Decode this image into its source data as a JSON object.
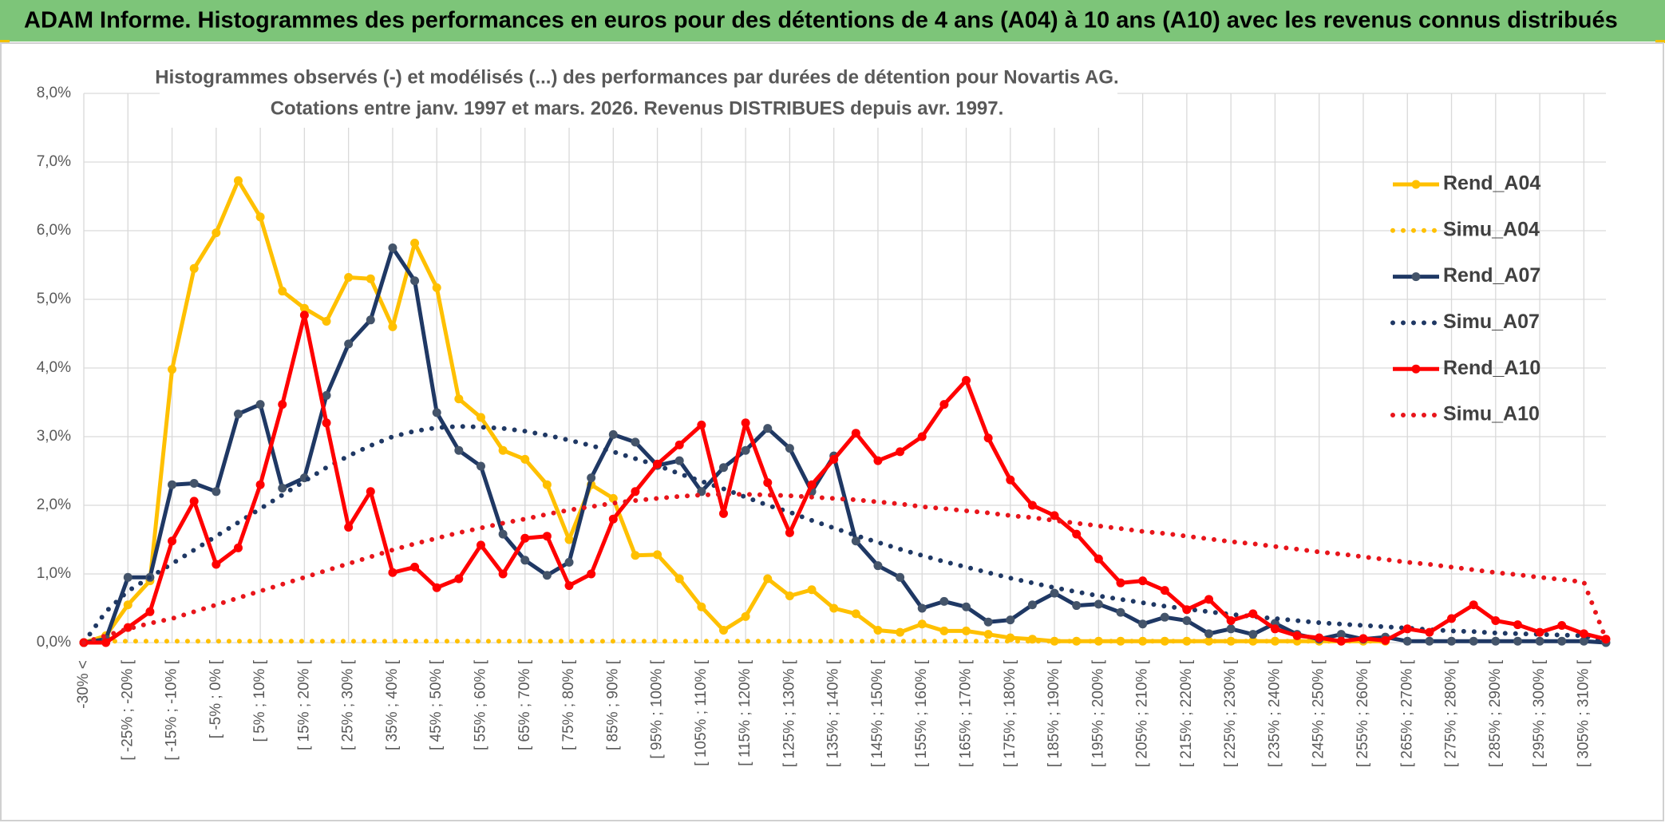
{
  "header": {
    "title": "ADAM Informe. Histogrammes des performances en euros pour des détentions de 4 ans (A04) à 10 ans (A10) avec les revenus connus distribués"
  },
  "chart_data": {
    "type": "line",
    "title": "Histogrammes observés (-) et modélisés (...) des performances par durées de détention pour Novartis AG.",
    "subtitle": "Cotations entre janv. 1997 et mars. 2026. Revenus DISTRIBUES depuis avr. 1997.",
    "categories": [
      "-30% <",
      null,
      "[ -25% ; -20% [",
      null,
      "[ -15% ; -10% [",
      null,
      "[ -5% ; 0% [",
      null,
      "[ 5% ; 10% [",
      null,
      "[ 15% ; 20% [",
      null,
      "[ 25% ; 30% [",
      null,
      "[ 35% ; 40% [",
      null,
      "[ 45% ; 50% [",
      null,
      "[ 55% ; 60% [",
      null,
      "[ 65% ; 70% [",
      null,
      "[ 75% ; 80% [",
      null,
      "[ 85% ; 90% [",
      null,
      "[ 95% ; 100% [",
      null,
      "[ 105% ; 110% [",
      null,
      "[ 115% ; 120% [",
      null,
      "[ 125% ; 130% [",
      null,
      "[ 135% ; 140% [",
      null,
      "[ 145% ; 150% [",
      null,
      "[ 155% ; 160% [",
      null,
      "[ 165% ; 170% [",
      null,
      "[ 175% ; 180% [",
      null,
      "[ 185% ; 190% [",
      null,
      "[ 195% ; 200% [",
      null,
      "[ 205% ; 210% [",
      null,
      "[ 215% ; 220% [",
      null,
      "[ 225% ; 230% [",
      null,
      "[ 235% ; 240% [",
      null,
      "[ 245% ; 250% [",
      null,
      "[ 255% ; 260% [",
      null,
      "[ 265% ; 270% [",
      null,
      "[ 275% ; 280% [",
      null,
      "[ 285% ; 290% [",
      null,
      "[ 295% ; 300% [",
      null,
      "[ 305% ; 310% [",
      null
    ],
    "series": [
      {
        "name": "Rend_A04",
        "color": "#ffc000",
        "style": "solid",
        "values": [
          0,
          0.1,
          0.55,
          0.9,
          3.98,
          5.45,
          5.97,
          6.73,
          6.2,
          5.12,
          4.87,
          4.68,
          5.32,
          5.3,
          4.6,
          5.82,
          5.17,
          3.55,
          3.28,
          2.8,
          2.67,
          2.3,
          1.5,
          2.3,
          2.1,
          1.27,
          1.28,
          0.93,
          0.52,
          0.18,
          0.38,
          0.93,
          0.68,
          0.77,
          0.5,
          0.42,
          0.18,
          0.15,
          0.27,
          0.17,
          0.17,
          0.12,
          0.07,
          0.05,
          0.02,
          0.02,
          0.02,
          0.02,
          0.02,
          0.02,
          0.02,
          0.02,
          0.02,
          0.02,
          0.02,
          0.02,
          0.02,
          0.02,
          0.02,
          0.02,
          null,
          null,
          null,
          null,
          null,
          null,
          null,
          null,
          null,
          null
        ]
      },
      {
        "name": "Simu_A04",
        "color": "#ffc000",
        "style": "dotted",
        "values": [
          0,
          0.02,
          0.02,
          0.02,
          0.02,
          0.02,
          0.02,
          0.02,
          0.02,
          0.02,
          0.02,
          0.02,
          0.02,
          0.02,
          0.02,
          0.02,
          0.02,
          0.02,
          0.02,
          0.02,
          0.02,
          0.02,
          0.02,
          0.02,
          0.02,
          0.02,
          0.02,
          0.02,
          0.02,
          0.02,
          0.02,
          0.02,
          0.02,
          0.02,
          0.02,
          0.02,
          0.02,
          0.02,
          0.02,
          0.02,
          0.02,
          0.02,
          0.02,
          0.02,
          0.02,
          0.02,
          0.02,
          0.02,
          0.02,
          0.02,
          0.02,
          0.02,
          0.02,
          0.02,
          0.02,
          0.02,
          0.02,
          0.02,
          0.02,
          0.02,
          null,
          null,
          null,
          null,
          null,
          null,
          null,
          null,
          null,
          null
        ]
      },
      {
        "name": "Rend_A07",
        "color": "#1f3864",
        "style": "solid",
        "values": [
          0,
          0.05,
          0.95,
          0.95,
          2.3,
          2.32,
          2.2,
          3.33,
          3.47,
          2.25,
          2.4,
          3.6,
          4.35,
          4.7,
          5.75,
          5.27,
          3.35,
          2.8,
          2.57,
          1.58,
          1.2,
          0.98,
          1.17,
          2.4,
          3.03,
          2.92,
          2.58,
          2.65,
          2.2,
          2.55,
          2.8,
          3.12,
          2.83,
          2.2,
          2.72,
          1.48,
          1.12,
          0.95,
          0.5,
          0.6,
          0.52,
          0.3,
          0.33,
          0.55,
          0.72,
          0.54,
          0.56,
          0.44,
          0.27,
          0.37,
          0.32,
          0.13,
          0.2,
          0.12,
          0.28,
          0.12,
          0.05,
          0.12,
          0.05,
          0.08,
          0.02,
          0.02,
          0.02,
          0.02,
          0.02,
          0.02,
          0.02,
          0.02,
          0.02,
          0
        ]
      },
      {
        "name": "Simu_A07",
        "color": "#1f3864",
        "style": "dotted",
        "values": [
          0,
          0.45,
          0.75,
          0.95,
          1.15,
          1.35,
          1.55,
          1.75,
          1.95,
          2.15,
          2.35,
          2.55,
          2.72,
          2.87,
          3.0,
          3.08,
          3.13,
          3.15,
          3.14,
          3.12,
          3.08,
          3.02,
          2.95,
          2.87,
          2.78,
          2.68,
          2.58,
          2.46,
          2.35,
          2.24,
          2.12,
          2.0,
          1.9,
          1.78,
          1.67,
          1.56,
          1.46,
          1.36,
          1.27,
          1.18,
          1.1,
          1.02,
          0.94,
          0.87,
          0.8,
          0.74,
          0.68,
          0.63,
          0.58,
          0.53,
          0.49,
          0.45,
          0.41,
          0.38,
          0.35,
          0.32,
          0.29,
          0.27,
          0.25,
          0.23,
          0.21,
          0.19,
          0.17,
          0.16,
          0.14,
          0.13,
          0.12,
          0.11,
          0.1,
          0
        ]
      },
      {
        "name": "Rend_A10",
        "color": "#ff0000",
        "style": "solid",
        "values": [
          0,
          0,
          0.22,
          0.45,
          1.48,
          2.06,
          1.14,
          1.38,
          2.3,
          3.47,
          4.77,
          3.2,
          1.68,
          2.2,
          1.02,
          1.1,
          0.8,
          0.93,
          1.42,
          1.0,
          1.52,
          1.55,
          0.83,
          1.0,
          1.8,
          2.2,
          2.6,
          2.88,
          3.17,
          1.88,
          3.2,
          2.33,
          1.6,
          2.3,
          2.67,
          3.05,
          2.65,
          2.78,
          3.0,
          3.47,
          3.82,
          2.98,
          2.37,
          2.0,
          1.85,
          1.58,
          1.22,
          0.87,
          0.9,
          0.76,
          0.48,
          0.63,
          0.32,
          0.42,
          0.2,
          0.1,
          0.07,
          0.02,
          0.06,
          0.03,
          0.2,
          0.15,
          0.35,
          0.55,
          0.32,
          0.26,
          0.15,
          0.25,
          0.13,
          0.05
        ]
      },
      {
        "name": "Simu_A10",
        "color": "#e8151b",
        "style": "dotted",
        "values": [
          0,
          0.1,
          0.2,
          0.28,
          0.35,
          0.45,
          0.55,
          0.65,
          0.75,
          0.85,
          0.95,
          1.05,
          1.15,
          1.25,
          1.35,
          1.44,
          1.52,
          1.6,
          1.67,
          1.74,
          1.8,
          1.87,
          1.93,
          1.98,
          2.03,
          2.07,
          2.1,
          2.13,
          2.15,
          2.16,
          2.16,
          2.15,
          2.14,
          2.12,
          2.1,
          2.08,
          2.05,
          2.02,
          1.98,
          1.95,
          1.92,
          1.89,
          1.85,
          1.82,
          1.78,
          1.74,
          1.7,
          1.66,
          1.62,
          1.59,
          1.55,
          1.51,
          1.47,
          1.44,
          1.4,
          1.36,
          1.32,
          1.29,
          1.25,
          1.21,
          1.17,
          1.14,
          1.1,
          1.06,
          1.02,
          0.99,
          0.95,
          0.92,
          0.88,
          0.05
        ]
      }
    ],
    "ylim": [
      0,
      8
    ],
    "yticks": [
      {
        "value": 0,
        "label": "0,0%"
      },
      {
        "value": 1,
        "label": "1,0%"
      },
      {
        "value": 2,
        "label": "2,0%"
      },
      {
        "value": 3,
        "label": "3,0%"
      },
      {
        "value": 4,
        "label": "4,0%"
      },
      {
        "value": 5,
        "label": "5,0%"
      },
      {
        "value": 6,
        "label": "6,0%"
      },
      {
        "value": 7,
        "label": "7,0%"
      },
      {
        "value": 8,
        "label": "8,0%"
      }
    ],
    "grid": true,
    "legend": "right"
  }
}
